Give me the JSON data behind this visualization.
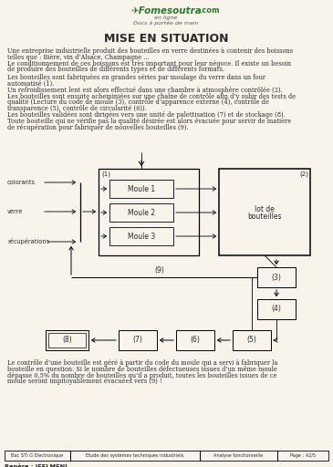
{
  "title": "MISE EN SITUATION",
  "logo_text1": "✈Fomesoutra",
  "logo_text2": ".com",
  "logo_italic": "en ligne",
  "logo_sub": "Docs à portée de main",
  "para1": [
    "Une entreprise industrielle produit des bouteilles en verre destinées à contenir des boissons",
    "telles que : Bière, vin d’Alsace, Champagne ...",
    "Le conditionnement de ces boissons est très important pour leur négoce. Il existe un besoin",
    "de produire des bouteilles de différents types et de différents formats."
  ],
  "para2": [
    "Les bouteilles sont fabriquées en grandes séries par moulage du verre dans un four",
    "automatisé (1).",
    "Un refroidissement lent est alors effectué dans une chambre à atmosphère contrôlée (2).",
    "Les bouteilles sont ensuite acheminiées sur une chaîne de contrôle afin d’y subir des tests de",
    "qualité (Lecture du code de moule (3), contrôle d’apparence externe (4), contrôle de",
    "transparence (5), contrôle de circularité (6)).",
    "Les bouteilles validées sont dirigées vers une unité de palettisation (7) et de stockage (8).",
    "Toute bouteille qui ne vérifie pas la qualité désirée est alors évacuée pour servir de matière",
    "de récupération pour fabriquer de nouvelles bouteilles (9)."
  ],
  "para3": [
    "Le contrôle d’une bouteille est géré à partir du code du moule qui a servi à fabriquer la",
    "bouteille en question. Si le nombre de bouteilles défectueuses issues d’un même moule",
    "dépasse 0,5% du nombre de bouteilles qu’il a produit, toutes les bouteilles issues de ce",
    "moule seront impitoyablement évacuées vers (9) !"
  ],
  "footer_col1": "Bac STI G Electronique",
  "footer_col2": "Etude des systèmes techniques industriels",
  "footer_col3": "Analyse fonctionnelle",
  "footer_col4": "Page : A2/5",
  "footer_repere": "Repère : IEELMENJ",
  "bg_color": "#f8f4ec",
  "text_color": "#2a2a2a"
}
